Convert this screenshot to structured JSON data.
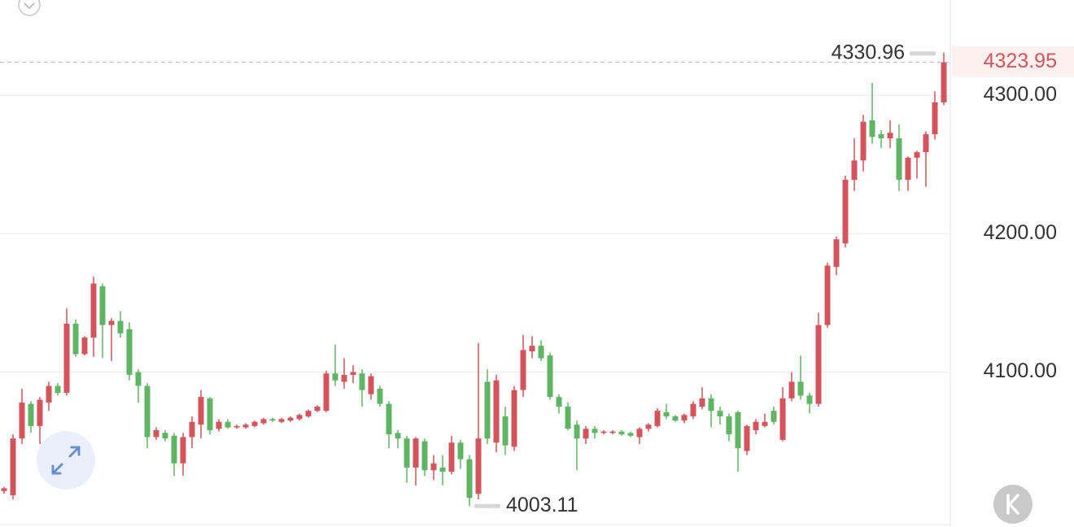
{
  "chart_data": {
    "type": "candlestick",
    "up_color": "#d4545c",
    "down_color": "#5fb564",
    "ylim": [
      3988,
      4369
    ],
    "yticks": [
      {
        "value": 4100,
        "label": "4100.00"
      },
      {
        "value": 4200,
        "label": "4200.00"
      },
      {
        "value": 4300,
        "label": "4300.00"
      }
    ],
    "grid": true,
    "open": [
      4014,
      4011,
      4052,
      4077,
      4061,
      4078,
      4090,
      4085,
      4135,
      4113,
      4125,
      4162,
      4134,
      4137,
      4131,
      4100,
      4090,
      4053,
      4056,
      4054,
      4034,
      4053,
      4062,
      4081,
      4059,
      4064,
      4060,
      4060,
      4061,
      4063,
      4066,
      4064,
      4065,
      4066,
      4068,
      4072,
      4072,
      4099,
      4093,
      4098,
      4099,
      4084,
      4088,
      4077,
      4056,
      4052,
      4031,
      4050,
      4029,
      4031,
      4028,
      4049,
      4037,
      4012,
      4093,
      4049,
      4068,
      4046,
      4087,
      4115,
      4119,
      4112,
      4082,
      4075,
      4062,
      4052,
      4059,
      4056,
      4056,
      4057,
      4056,
      4053,
      4059,
      4061,
      4071,
      4068,
      4065,
      4068,
      4075,
      4081,
      4072,
      4068,
      4071,
      4043,
      4058,
      4061,
      4072,
      4051,
      4081,
      4093,
      4083,
      4077,
      4134,
      4176,
      4193,
      4239,
      4253,
      4282,
      4272,
      4269,
      4269,
      4239,
      4255,
      4259,
      4272,
      4295
    ],
    "high": [
      4017,
      4055,
      4088,
      4079,
      4082,
      4093,
      4092,
      4146,
      4138,
      4126,
      4169,
      4164,
      4139,
      4144,
      4136,
      4102,
      4092,
      4060,
      4058,
      4056,
      4056,
      4068,
      4087,
      4082,
      4066,
      4066,
      4062,
      4063,
      4065,
      4067,
      4067,
      4067,
      4068,
      4070,
      4073,
      4076,
      4101,
      4120,
      4110,
      4105,
      4102,
      4099,
      4090,
      4079,
      4058,
      4054,
      4053,
      4052,
      4040,
      4040,
      4054,
      4051,
      4040,
      4121,
      4102,
      4098,
      4075,
      4090,
      4127,
      4126,
      4123,
      4114,
      4084,
      4078,
      4065,
      4061,
      4061,
      4058,
      4058,
      4058,
      4057,
      4060,
      4063,
      4074,
      4077,
      4069,
      4070,
      4079,
      4089,
      4084,
      4075,
      4070,
      4072,
      4062,
      4066,
      4070,
      4075,
      4089,
      4100,
      4112,
      4085,
      4143,
      4179,
      4198,
      4242,
      4269,
      4286,
      4309,
      4275,
      4282,
      4279,
      4256,
      4260,
      4274,
      4303,
      4330.96
    ],
    "low": [
      4012,
      4008,
      4048,
      4056,
      4048,
      4072,
      4083,
      4083,
      4111,
      4112,
      4111,
      4110,
      4108,
      4125,
      4094,
      4078,
      4045,
      4051,
      4050,
      4025,
      4025,
      4045,
      4052,
      4055,
      4057,
      4059,
      4059,
      4059,
      4060,
      4062,
      4064,
      4063,
      4064,
      4065,
      4067,
      4071,
      4071,
      4090,
      4088,
      4092,
      4075,
      4080,
      4075,
      4045,
      4045,
      4020,
      4018,
      4025,
      4022,
      4018,
      4026,
      4030,
      4003.11,
      4008,
      4048,
      4042,
      4040,
      4043,
      4082,
      4110,
      4108,
      4080,
      4070,
      4058,
      4029,
      4048,
      4052,
      4055,
      4055,
      4054,
      4053,
      4048,
      4057,
      4060,
      4066,
      4064,
      4063,
      4066,
      4073,
      4060,
      4062,
      4050,
      4028,
      4040,
      4055,
      4060,
      4062,
      4050,
      4079,
      4080,
      4070,
      4075,
      4132,
      4170,
      4190,
      4231,
      4245,
      4265,
      4262,
      4262,
      4231,
      4231,
      4240,
      4234,
      4268,
      4293
    ],
    "close": [
      4016,
      4052,
      4078,
      4061,
      4080,
      4090,
      4085,
      4135,
      4113,
      4125,
      4164,
      4134,
      4137,
      4128,
      4098,
      4090,
      4053,
      4058,
      4052,
      4034,
      4053,
      4064,
      4082,
      4058,
      4064,
      4060,
      4061,
      4062,
      4064,
      4066,
      4065,
      4066,
      4067,
      4069,
      4072,
      4075,
      4099,
      4094,
      4098,
      4100,
      4087,
      4097,
      4077,
      4055,
      4052,
      4031,
      4052,
      4029,
      4034,
      4028,
      4049,
      4037,
      4009,
      4052,
      4052,
      4094,
      4047,
      4087,
      4116,
      4119,
      4110,
      4082,
      4075,
      4059,
      4052,
      4059,
      4056,
      4057,
      4057,
      4055,
      4054,
      4059,
      4062,
      4072,
      4068,
      4065,
      4069,
      4077,
      4081,
      4072,
      4068,
      4055,
      4045,
      4061,
      4064,
      4064,
      4064,
      4081,
      4093,
      4083,
      4077,
      4134,
      4177,
      4196,
      4239,
      4253,
      4281,
      4270,
      4269,
      4273,
      4239,
      4255,
      4259,
      4272,
      4295,
      4323.95
    ]
  }
}
